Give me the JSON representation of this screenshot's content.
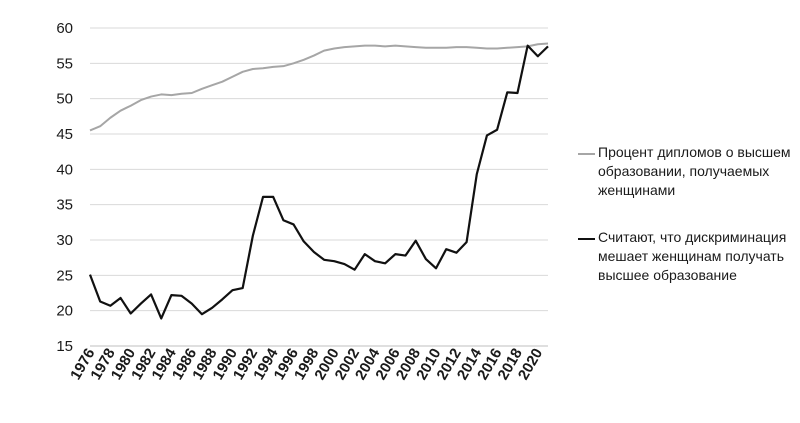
{
  "chart_data": {
    "type": "line",
    "title": "",
    "xlabel": "",
    "ylabel": "",
    "xlim": [
      1976,
      2021
    ],
    "ylim": [
      15,
      60
    ],
    "y_ticks": [
      15,
      20,
      25,
      30,
      35,
      40,
      45,
      50,
      55,
      60
    ],
    "x_ticks": [
      1976,
      1978,
      1980,
      1982,
      1984,
      1986,
      1988,
      1990,
      1992,
      1994,
      1996,
      1998,
      2000,
      2002,
      2004,
      2006,
      2008,
      2010,
      2012,
      2014,
      2016,
      2018,
      2020
    ],
    "grid": "horizontal",
    "legend_position": "right",
    "x": [
      1976,
      1977,
      1978,
      1979,
      1980,
      1981,
      1982,
      1983,
      1984,
      1985,
      1986,
      1987,
      1988,
      1989,
      1990,
      1991,
      1992,
      1993,
      1994,
      1995,
      1996,
      1997,
      1998,
      1999,
      2000,
      2001,
      2002,
      2003,
      2004,
      2005,
      2006,
      2007,
      2008,
      2009,
      2010,
      2011,
      2012,
      2013,
      2014,
      2015,
      2016,
      2017,
      2018,
      2019,
      2020,
      2021
    ],
    "series": [
      {
        "name": "Процент дипломов о высшем образовании, получаемых женщинами",
        "color": "#a6a6a6",
        "values": [
          45.5,
          46.1,
          47.3,
          48.3,
          49.0,
          49.8,
          50.3,
          50.6,
          50.5,
          50.7,
          50.8,
          51.4,
          51.9,
          52.4,
          53.1,
          53.8,
          54.2,
          54.3,
          54.5,
          54.6,
          55.0,
          55.5,
          56.1,
          56.8,
          57.1,
          57.3,
          57.4,
          57.5,
          57.5,
          57.4,
          57.5,
          57.4,
          57.3,
          57.2,
          57.2,
          57.2,
          57.3,
          57.3,
          57.2,
          57.1,
          57.1,
          57.2,
          57.3,
          57.4,
          57.7,
          57.8
        ]
      },
      {
        "name": "Считают, что дискриминация мешает женщинам получать высшее образование",
        "color": "#111111",
        "values": [
          25.1,
          21.3,
          20.7,
          21.8,
          19.6,
          21.0,
          22.3,
          18.9,
          22.2,
          22.1,
          21.0,
          19.5,
          20.4,
          21.6,
          22.9,
          23.2,
          30.6,
          36.1,
          36.1,
          32.8,
          32.2,
          29.8,
          28.3,
          27.2,
          27.0,
          26.6,
          25.8,
          28.0,
          27.0,
          26.7,
          28.0,
          27.8,
          29.9,
          27.3,
          26.0,
          28.7,
          28.2,
          29.7,
          39.3,
          44.8,
          45.6,
          50.9,
          50.8,
          57.5,
          56.0,
          57.4
        ]
      }
    ]
  }
}
